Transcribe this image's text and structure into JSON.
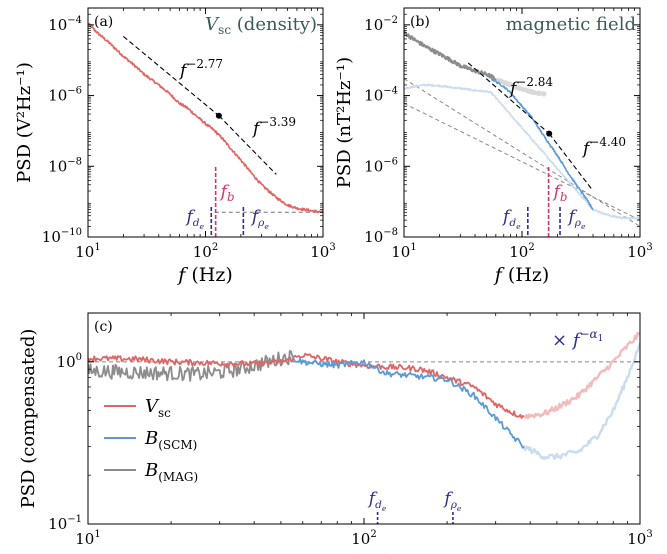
{
  "chart_data": [
    {
      "panel": "(a)",
      "type": "line",
      "title": "V_sc (density)",
      "title_parts": {
        "symbol": "V",
        "sub": "sc",
        "rest": " (density)"
      },
      "xlabel": "f (Hz)",
      "ylabel": "PSD (V²Hz⁻¹)",
      "xscale": "log",
      "yscale": "log",
      "xlim": [
        10,
        1000
      ],
      "ylim": [
        1e-10,
        0.0003
      ],
      "xticks": [
        {
          "v": 10,
          "label": "10",
          "exp": "1"
        },
        {
          "v": 100,
          "label": "10",
          "exp": "2"
        },
        {
          "v": 1000,
          "label": "10",
          "exp": "3"
        }
      ],
      "yticks": [
        {
          "v": 1e-10,
          "label": "10",
          "exp": "−10"
        },
        {
          "v": 1e-08,
          "label": "10",
          "exp": "−8"
        },
        {
          "v": 1e-06,
          "label": "10",
          "exp": "−6"
        },
        {
          "v": 0.0001,
          "label": "10",
          "exp": "−4"
        }
      ],
      "series": [
        {
          "name": "",
          "color": "#e06666",
          "x": [
            10,
            12,
            15,
            20,
            25,
            30,
            40,
            50,
            60,
            70,
            80,
            100,
            120,
            140,
            160,
            200,
            250,
            300,
            400,
            500,
            600,
            800,
            1000
          ],
          "y": [
            0.00011,
            6e-05,
            3.2e-05,
            1.3e-05,
            7e-06,
            4e-06,
            2e-06,
            1.1e-06,
            6e-07,
            4.5e-07,
            3e-07,
            1.6e-07,
            1e-07,
            6e-08,
            3.5e-08,
            1.5e-08,
            6e-09,
            3e-09,
            1.3e-09,
            8e-10,
            6.5e-10,
            5.5e-10,
            5e-10
          ]
        }
      ],
      "fits": [
        {
          "label": "f^−2.77",
          "base": "f",
          "exp": "−2.77",
          "x": [
            20,
            130
          ],
          "y": [
            2.8e-05,
            1.6e-07
          ]
        },
        {
          "label": "f^−3.39",
          "base": "f",
          "exp": "−3.39",
          "x": [
            130,
            400
          ],
          "y": [
            1.6e-07,
            3.5e-09
          ]
        }
      ],
      "break_point": {
        "x": 130,
        "y": 1.6e-07
      },
      "noise_floor": {
        "y": 5e-10,
        "x": [
          120,
          1000
        ]
      },
      "markers": [
        {
          "label": "f_b",
          "base": "f",
          "sub": "b",
          "x": 122,
          "color": "#d6336c"
        },
        {
          "label": "f_de",
          "base": "f",
          "sub": "de",
          "x": 112,
          "color": "#2b2f8f"
        },
        {
          "label": "f_ρe",
          "base": "f",
          "sub": "ρe",
          "x": 210,
          "color": "#2b2f8f"
        }
      ]
    },
    {
      "panel": "(b)",
      "type": "line",
      "title": "magnetic field",
      "xlabel": "f (Hz)",
      "ylabel": "PSD (nT²Hz⁻¹)",
      "xscale": "log",
      "yscale": "log",
      "xlim": [
        10,
        1000
      ],
      "ylim": [
        1e-08,
        0.03
      ],
      "xticks": [
        {
          "v": 10,
          "label": "10",
          "exp": "1"
        },
        {
          "v": 100,
          "label": "10",
          "exp": "2"
        },
        {
          "v": 1000,
          "label": "10",
          "exp": "3"
        }
      ],
      "yticks": [
        {
          "v": 1e-08,
          "label": "10",
          "exp": "−8"
        },
        {
          "v": 1e-06,
          "label": "10",
          "exp": "−6"
        },
        {
          "v": 0.0001,
          "label": "10",
          "exp": "−4"
        },
        {
          "v": 0.01,
          "label": "10",
          "exp": "−2"
        }
      ],
      "series": [
        {
          "name": "B(MAG)",
          "color": "#8c8c8c",
          "x": [
            10,
            12,
            15,
            20,
            25,
            30,
            40,
            50,
            60
          ],
          "y": [
            0.006,
            0.004,
            0.0025,
            0.0015,
            0.001,
            0.0007,
            0.0005,
            0.0004,
            0.0003
          ]
        },
        {
          "name": "B(MAG) faded",
          "color": "#d9d9d9",
          "x": [
            60,
            80,
            100,
            130,
            160
          ],
          "y": [
            0.0003,
            0.0002,
            0.00015,
            0.00012,
            0.00011
          ]
        },
        {
          "name": "B(SCM)",
          "color": "#5b9bd5",
          "x": [
            55,
            60,
            70,
            80,
            100,
            120,
            150,
            200,
            250,
            300,
            350,
            400
          ],
          "y": [
            0.0003,
            0.00025,
            0.00018,
            0.00012,
            5e-05,
            2.5e-05,
            8e-06,
            2e-06,
            6e-07,
            2.5e-07,
            1.2e-07,
            6e-08
          ]
        },
        {
          "name": "B(SCM) faded",
          "color": "#c9ddef",
          "x": [
            10,
            12,
            15,
            20,
            25,
            30,
            40,
            50,
            55,
            400,
            500,
            600,
            700,
            800,
            900,
            1000
          ],
          "y": [
            0.00015,
            0.00018,
            0.0002,
            0.00019,
            0.00017,
            0.00016,
            0.00014,
            0.00013,
            0.00012,
            6e-08,
            4.5e-08,
            3.8e-08,
            3.5e-08,
            3.4e-08,
            3.4e-08,
            3.5e-08
          ]
        }
      ],
      "fits": [
        {
          "label": "f^−2.84",
          "base": "f",
          "exp": "−2.84",
          "x": [
            35,
            170
          ],
          "y": [
            0.0005,
            5e-06
          ]
        },
        {
          "label": "f^−4.40",
          "base": "f",
          "exp": "−4.40",
          "x": [
            170,
            400
          ],
          "y": [
            5e-06,
            1.2e-07
          ]
        }
      ],
      "break_point": {
        "x": 170,
        "y": 5e-06
      },
      "noise_lines": [
        {
          "x": [
            10,
            1000
          ],
          "y": [
            6e-05,
            3e-08
          ]
        },
        {
          "x": [
            10,
            1000
          ],
          "y": [
            0.0003,
            2e-08
          ]
        }
      ],
      "markers": [
        {
          "label": "f_b",
          "base": "f",
          "sub": "b",
          "x": 168,
          "color": "#d6336c"
        },
        {
          "label": "f_de",
          "base": "f",
          "sub": "de",
          "x": 112,
          "color": "#2b2f8f"
        },
        {
          "label": "f_ρe",
          "base": "f",
          "sub": "ρe",
          "x": 210,
          "color": "#2b2f8f"
        }
      ]
    },
    {
      "panel": "(c)",
      "type": "line",
      "xlabel": "f (Hz)",
      "ylabel": "PSD (compensated)",
      "xscale": "log",
      "yscale": "log",
      "xlim": [
        10,
        1000
      ],
      "ylim": [
        0.1,
        2.0
      ],
      "xticks": [
        {
          "v": 10,
          "label": "10",
          "exp": "1"
        },
        {
          "v": 100,
          "label": "10",
          "exp": "2"
        },
        {
          "v": 1000,
          "label": "10",
          "exp": "3"
        }
      ],
      "yticks": [
        {
          "v": 0.1,
          "label": "10",
          "exp": "−1"
        },
        {
          "v": 1,
          "label": "10",
          "exp": "0"
        }
      ],
      "annotation": {
        "prefix": "×",
        "base": "f",
        "exp": "−α",
        "exp_sub": "1"
      },
      "reference_line": {
        "y": 1
      },
      "legend": {
        "placement": "left",
        "entries": [
          {
            "name": "V_sc",
            "base": "V",
            "sub": "sc",
            "color": "#e06666"
          },
          {
            "name": "B_(SCM)",
            "base": "B",
            "sub": "(SCM)",
            "color": "#5b9bd5"
          },
          {
            "name": "B_(MAG)",
            "base": "B",
            "sub": "(MAG)",
            "color": "#8c8c8c"
          }
        ]
      },
      "series": [
        {
          "name": "V_sc",
          "color": "#e06666",
          "x": [
            10,
            15,
            20,
            30,
            40,
            50,
            60,
            70,
            80,
            100,
            120,
            140,
            160,
            180,
            200,
            250,
            300,
            350,
            380
          ],
          "y": [
            1.05,
            1.04,
            1.0,
            0.98,
            0.97,
            1.0,
            1.1,
            1.05,
            1.0,
            0.95,
            0.93,
            0.92,
            0.9,
            0.85,
            0.8,
            0.7,
            0.55,
            0.48,
            0.46
          ]
        },
        {
          "name": "V_sc faded",
          "color": "#f2bcbc",
          "x": [
            380,
            450,
            500,
            600,
            700,
            800,
            900,
            1000
          ],
          "y": [
            0.46,
            0.48,
            0.52,
            0.62,
            0.8,
            1.0,
            1.25,
            1.5
          ]
        },
        {
          "name": "B_(SCM)",
          "color": "#5b9bd5",
          "x": [
            55,
            60,
            70,
            80,
            100,
            120,
            150,
            200,
            250,
            300,
            350,
            380
          ],
          "y": [
            1.05,
            1.0,
            0.97,
            0.95,
            1.0,
            0.85,
            0.82,
            0.78,
            0.62,
            0.45,
            0.34,
            0.3
          ]
        },
        {
          "name": "B_(SCM) faded",
          "color": "#c9ddef",
          "x": [
            380,
            450,
            500,
            600,
            700,
            800,
            900,
            1000
          ],
          "y": [
            0.3,
            0.26,
            0.26,
            0.28,
            0.35,
            0.5,
            0.8,
            1.3
          ]
        },
        {
          "name": "B_(MAG)",
          "color": "#8c8c8c",
          "x": [
            10,
            15,
            20,
            25,
            30,
            35,
            40,
            45,
            50,
            55
          ],
          "y": [
            0.88,
            0.86,
            0.85,
            0.84,
            0.86,
            0.9,
            0.95,
            1.0,
            1.05,
            1.08
          ]
        }
      ],
      "markers": [
        {
          "label": "f_de",
          "base": "f",
          "sub": "de",
          "x": 112,
          "color": "#2b2f8f"
        },
        {
          "label": "f_ρe",
          "base": "f",
          "sub": "ρe",
          "x": 210,
          "color": "#2b2f8f"
        }
      ]
    }
  ]
}
